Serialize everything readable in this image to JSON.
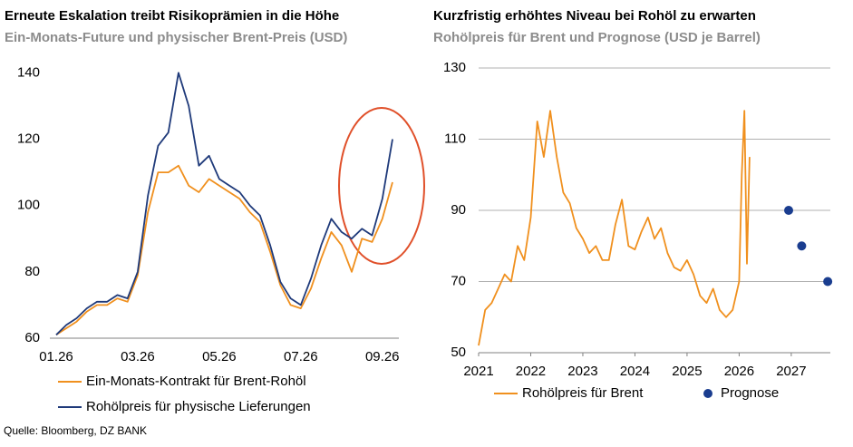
{
  "chart_data": [
    {
      "type": "line",
      "title": "Erneute Eskalation treibt Risikoprämien in die Höhe",
      "subtitle": "Ein-Monats-Future und physischer Brent-Preis (USD)",
      "categories": [
        "01.26",
        null,
        null,
        null,
        null,
        null,
        null,
        null,
        "03.26",
        null,
        null,
        null,
        null,
        null,
        null,
        null,
        "05.26",
        null,
        null,
        null,
        null,
        null,
        null,
        null,
        "07.26",
        null,
        null,
        null,
        null,
        null,
        null,
        null,
        "09.26",
        null
      ],
      "series": [
        {
          "name": "Ein-Monats-Kontrakt für Brent-Rohöl",
          "color": "#f0901e",
          "values": [
            61,
            63,
            65,
            68,
            70,
            70,
            72,
            71,
            79,
            98,
            110,
            110,
            112,
            106,
            104,
            108,
            106,
            104,
            102,
            98,
            95,
            86,
            76,
            70,
            69,
            75,
            84,
            92,
            88,
            80,
            90,
            89,
            96,
            107
          ]
        },
        {
          "name": "Rohölpreis für physische Lieferungen",
          "color": "#1f3a7a",
          "values": [
            61,
            64,
            66,
            69,
            71,
            71,
            73,
            72,
            80,
            103,
            118,
            122,
            140,
            130,
            112,
            115,
            108,
            106,
            104,
            100,
            97,
            88,
            77,
            72,
            70,
            78,
            88,
            96,
            92,
            90,
            93,
            91,
            102,
            120
          ]
        }
      ],
      "ylim": [
        60,
        145
      ],
      "yticks": [
        60,
        80,
        100,
        120,
        140
      ],
      "grid": false
    },
    {
      "type": "line",
      "title": "Kurzfristig erhöhtes Niveau bei Rohöl zu erwarten",
      "subtitle": "Rohölpreis für Brent und Prognose (USD je Barrel)",
      "series": [
        {
          "name": "Rohölpreis für Brent",
          "color": "#f0901e",
          "mark": "line",
          "x": [
            2021.0,
            2021.125,
            2021.25,
            2021.375,
            2021.5,
            2021.625,
            2021.75,
            2021.875,
            2022.0,
            2022.125,
            2022.25,
            2022.375,
            2022.5,
            2022.625,
            2022.75,
            2022.875,
            2023.0,
            2023.125,
            2023.25,
            2023.375,
            2023.5,
            2023.625,
            2023.75,
            2023.875,
            2024.0,
            2024.125,
            2024.25,
            2024.375,
            2024.5,
            2024.625,
            2024.75,
            2024.875,
            2025.0,
            2025.125,
            2025.25,
            2025.375,
            2025.5,
            2025.625,
            2025.75,
            2025.875,
            2026.0,
            2026.05,
            2026.1,
            2026.15,
            2026.2
          ],
          "values": [
            52,
            62,
            64,
            68,
            72,
            70,
            80,
            76,
            88,
            115,
            105,
            118,
            105,
            95,
            92,
            85,
            82,
            78,
            80,
            76,
            76,
            86,
            93,
            80,
            79,
            84,
            88,
            82,
            85,
            78,
            74,
            73,
            76,
            72,
            66,
            64,
            68,
            62,
            60,
            62,
            70,
            100,
            118,
            75,
            105
          ]
        },
        {
          "name": "Prognose",
          "color": "#1a3d8f",
          "mark": "dot",
          "x": [
            2026.95,
            2027.2,
            2027.7
          ],
          "values": [
            90,
            80,
            70
          ]
        }
      ],
      "xlim": [
        2021,
        2027.75
      ],
      "xticks": [
        2021,
        2022,
        2023,
        2024,
        2025,
        2026,
        2027
      ],
      "ylim": [
        50,
        130
      ],
      "yticks": [
        50,
        70,
        90,
        110,
        130
      ],
      "grid": true
    }
  ],
  "source": "Quelle: Bloomberg, DZ BANK"
}
